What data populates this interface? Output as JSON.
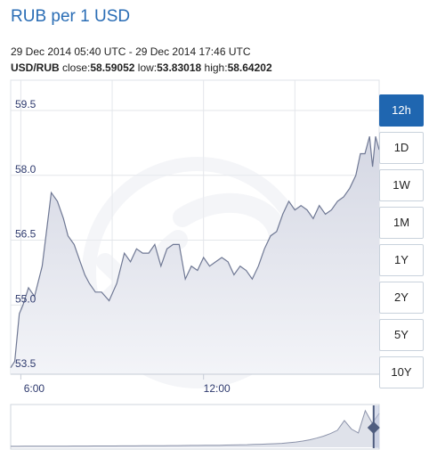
{
  "header": {
    "title": "RUB per 1 USD",
    "range": "29 Dec 2014 05:40 UTC - 29 Dec 2014 17:46 UTC",
    "pair": "USD/RUB",
    "close_label": "close:",
    "close_value": "58.59052",
    "low_label": "low:",
    "low_value": "53.83018",
    "high_label": "high:",
    "high_value": "58.64202"
  },
  "buttons": [
    {
      "label": "12h",
      "active": true
    },
    {
      "label": "1D",
      "active": false
    },
    {
      "label": "1W",
      "active": false
    },
    {
      "label": "1M",
      "active": false
    },
    {
      "label": "1Y",
      "active": false
    },
    {
      "label": "2Y",
      "active": false
    },
    {
      "label": "5Y",
      "active": false
    },
    {
      "label": "10Y",
      "active": false
    }
  ],
  "colors": {
    "line": "#6f7894",
    "fill_top": "#d4d7e3",
    "fill_bottom": "#f3f4f8",
    "grid": "#e3e6ea",
    "label": "#2e3a6e",
    "accent": "#1f66b0"
  },
  "chart_data": {
    "type": "area",
    "title": "RUB per 1 USD",
    "xlabel": "",
    "ylabel": "",
    "x_ticks": [
      {
        "label": "6:00",
        "hours": 6.0
      },
      {
        "label": "12:00",
        "hours": 12.0
      }
    ],
    "x_range_hours": [
      5.6667,
      17.7667
    ],
    "y_ticks": [
      53.5,
      55.0,
      56.5,
      58.0,
      59.5
    ],
    "ylim": [
      53.4,
      60.2
    ],
    "grid": true,
    "series": [
      {
        "x_hours": [
          5.6667,
          5.8,
          5.95,
          6.07,
          6.25,
          6.45,
          6.7,
          7.0,
          7.2,
          7.4,
          7.55,
          7.75,
          7.95,
          8.1,
          8.25,
          8.45,
          8.65,
          8.9,
          9.15,
          9.4,
          9.6,
          9.8,
          10.0,
          10.2,
          10.4,
          10.6,
          10.8,
          11.0,
          11.2,
          11.4,
          11.6,
          11.8,
          12.0,
          12.2,
          12.4,
          12.6,
          12.8,
          13.0,
          13.2,
          13.4,
          13.6,
          13.8,
          14.0,
          14.2,
          14.4,
          14.6,
          14.8,
          15.0,
          15.2,
          15.4,
          15.6,
          15.8,
          16.0,
          16.2,
          16.4,
          16.6,
          16.8,
          17.0,
          17.15,
          17.3,
          17.45,
          17.55,
          17.65,
          17.7667
        ],
        "values": [
          53.55,
          53.7,
          54.8,
          55.0,
          55.4,
          55.2,
          55.9,
          57.6,
          57.4,
          57.0,
          56.6,
          56.4,
          56.0,
          55.7,
          55.5,
          55.3,
          55.3,
          55.1,
          55.5,
          56.2,
          56.0,
          56.3,
          56.2,
          56.2,
          56.4,
          55.9,
          56.3,
          56.4,
          56.4,
          55.6,
          55.9,
          55.8,
          56.1,
          55.9,
          56.0,
          56.1,
          56.0,
          55.7,
          55.9,
          55.8,
          55.6,
          55.9,
          56.3,
          56.6,
          56.7,
          57.1,
          57.4,
          57.2,
          57.3,
          57.2,
          57.0,
          57.3,
          57.1,
          57.2,
          57.4,
          57.5,
          57.7,
          58.0,
          58.5,
          58.5,
          58.9,
          58.2,
          58.9,
          58.59
        ]
      }
    ]
  },
  "navigator": {
    "values": [
      53.55,
      53.55,
      53.56,
      53.56,
      53.57,
      53.57,
      53.57,
      53.58,
      53.58,
      53.59,
      53.59,
      53.59,
      53.6,
      53.6,
      53.61,
      53.61,
      53.62,
      53.62,
      53.62,
      53.63,
      53.64,
      53.64,
      53.65,
      53.66,
      53.66,
      53.67,
      53.68,
      53.69,
      53.7,
      53.71,
      53.72,
      53.74,
      53.76,
      53.78,
      53.8,
      53.83,
      53.86,
      53.9,
      53.95,
      54.0,
      54.1,
      54.2,
      54.35,
      54.55,
      54.8,
      55.1,
      55.5,
      56.0,
      57.5,
      56.2,
      55.6,
      59.0,
      57.1,
      58.59
    ],
    "selection_start": 0.985
  }
}
